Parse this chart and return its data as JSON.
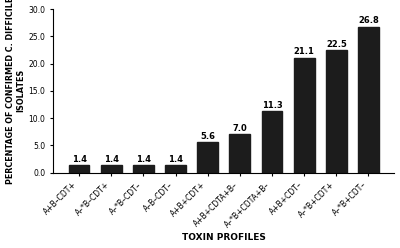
{
  "categories": [
    "A+B–CDT+",
    "A–*B–CDT+",
    "A–*B–CDT–",
    "A–B–CDT–",
    "A+B+CDT+",
    "A+B+CDTA+B–",
    "A–*B+CDTA+B–",
    "A+B+CDT–",
    "A–*B+CDT+",
    "A–*B+CDT–"
  ],
  "values": [
    1.4,
    1.4,
    1.4,
    1.4,
    5.6,
    7.0,
    11.3,
    21.1,
    22.5,
    26.8
  ],
  "bar_color": "#1c1c1c",
  "ylabel": "PERCENTAGE OF CONFIRMED C. DIFFICILE\nISOLATES",
  "xlabel": "TOXIN PROFILES",
  "ylim": [
    0,
    30.0
  ],
  "yticks": [
    0.0,
    5.0,
    10.0,
    15.0,
    20.0,
    25.0,
    30.0
  ],
  "value_fontsize": 6,
  "label_fontsize": 5.5,
  "axis_label_fontsize": 6.5,
  "ylabel_fontsize": 5.8,
  "bar_width": 0.65
}
